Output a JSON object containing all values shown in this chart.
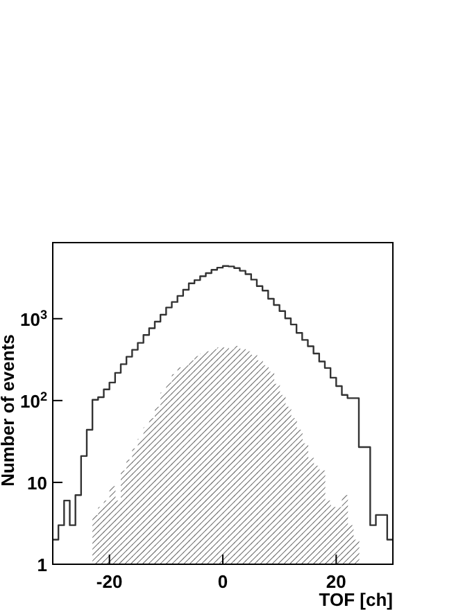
{
  "chart_data": {
    "type": "histogram",
    "xlabel": "TOF [ch]",
    "ylabel": "Number of events",
    "log": "y",
    "xlim": [
      -30,
      30
    ],
    "ylim": [
      1,
      8500
    ],
    "xticks": [
      -20,
      0,
      20
    ],
    "yticks": [
      1,
      10,
      {
        "value": 100,
        "label": "10$^{2}$"
      },
      {
        "value": 1000,
        "label": "10$^{3}$"
      }
    ],
    "bins": [
      -23,
      -22,
      -21,
      -20,
      -19,
      -18,
      -17,
      -16,
      -15,
      -14,
      -13,
      -12,
      -11,
      -10,
      -9,
      -8,
      -7,
      -6,
      -5,
      -4,
      -3,
      -2,
      -1,
      0,
      1,
      2,
      3,
      4,
      5,
      6,
      7,
      8,
      9,
      10,
      11,
      12,
      13,
      14,
      15,
      16,
      17,
      18,
      19,
      20,
      21,
      22,
      23,
      24
    ],
    "series": [
      {
        "type": "step",
        "color": "#333333",
        "x": [
          -29.5,
          -28.5,
          -27.5,
          -26.5,
          -25.5,
          -24.5,
          -23.5,
          -22.5,
          -21.5,
          -20.5,
          -19.5,
          -18.5,
          -17.5,
          -16.5,
          -15.5,
          -14.5,
          -13.5,
          -12.5,
          -11.5,
          -10.5,
          -9.5,
          -8.5,
          -7.5,
          -6.5,
          -5.5,
          -4.5,
          -3.5,
          -2.5,
          -1.5,
          -0.5,
          0.5,
          1.5,
          2.5,
          3.5,
          4.5,
          5.5,
          6.5,
          7.5,
          8.5,
          9.5,
          10.5,
          11.5,
          12.5,
          13.5,
          14.5,
          15.5,
          16.5,
          17.5,
          18.5,
          19.5,
          20.5,
          21.5,
          22.5,
          23.5,
          24.5,
          25.5,
          26.5,
          27.5,
          28.5,
          29.5
        ],
        "values": [
          2,
          3,
          6,
          3,
          7,
          21,
          44,
          102,
          110,
          137,
          166,
          218,
          278,
          343,
          417,
          507,
          632,
          765,
          920,
          1120,
          1370,
          1600,
          1900,
          2260,
          2700,
          2960,
          3300,
          3600,
          3950,
          4200,
          4400,
          4350,
          4150,
          3850,
          3500,
          3000,
          2500,
          2200,
          1750,
          1470,
          1240,
          1010,
          850,
          670,
          550,
          460,
          375,
          300,
          250,
          190,
          150,
          117,
          107,
          107,
          27,
          27,
          3,
          4,
          4,
          2
        ]
      },
      {
        "color": "#555555",
        "values": [
          4,
          5,
          6,
          9,
          6,
          14,
          19,
          26,
          34,
          47,
          61,
          84,
          125,
          166,
          210,
          254,
          270,
          310,
          350,
          375,
          400,
          425,
          445,
          445,
          425,
          465,
          425,
          400,
          360,
          310,
          270,
          225,
          160,
          117,
          84,
          61,
          44,
          30,
          20,
          16,
          14,
          6,
          5,
          5,
          7,
          3,
          2
        ]
      }
    ]
  }
}
